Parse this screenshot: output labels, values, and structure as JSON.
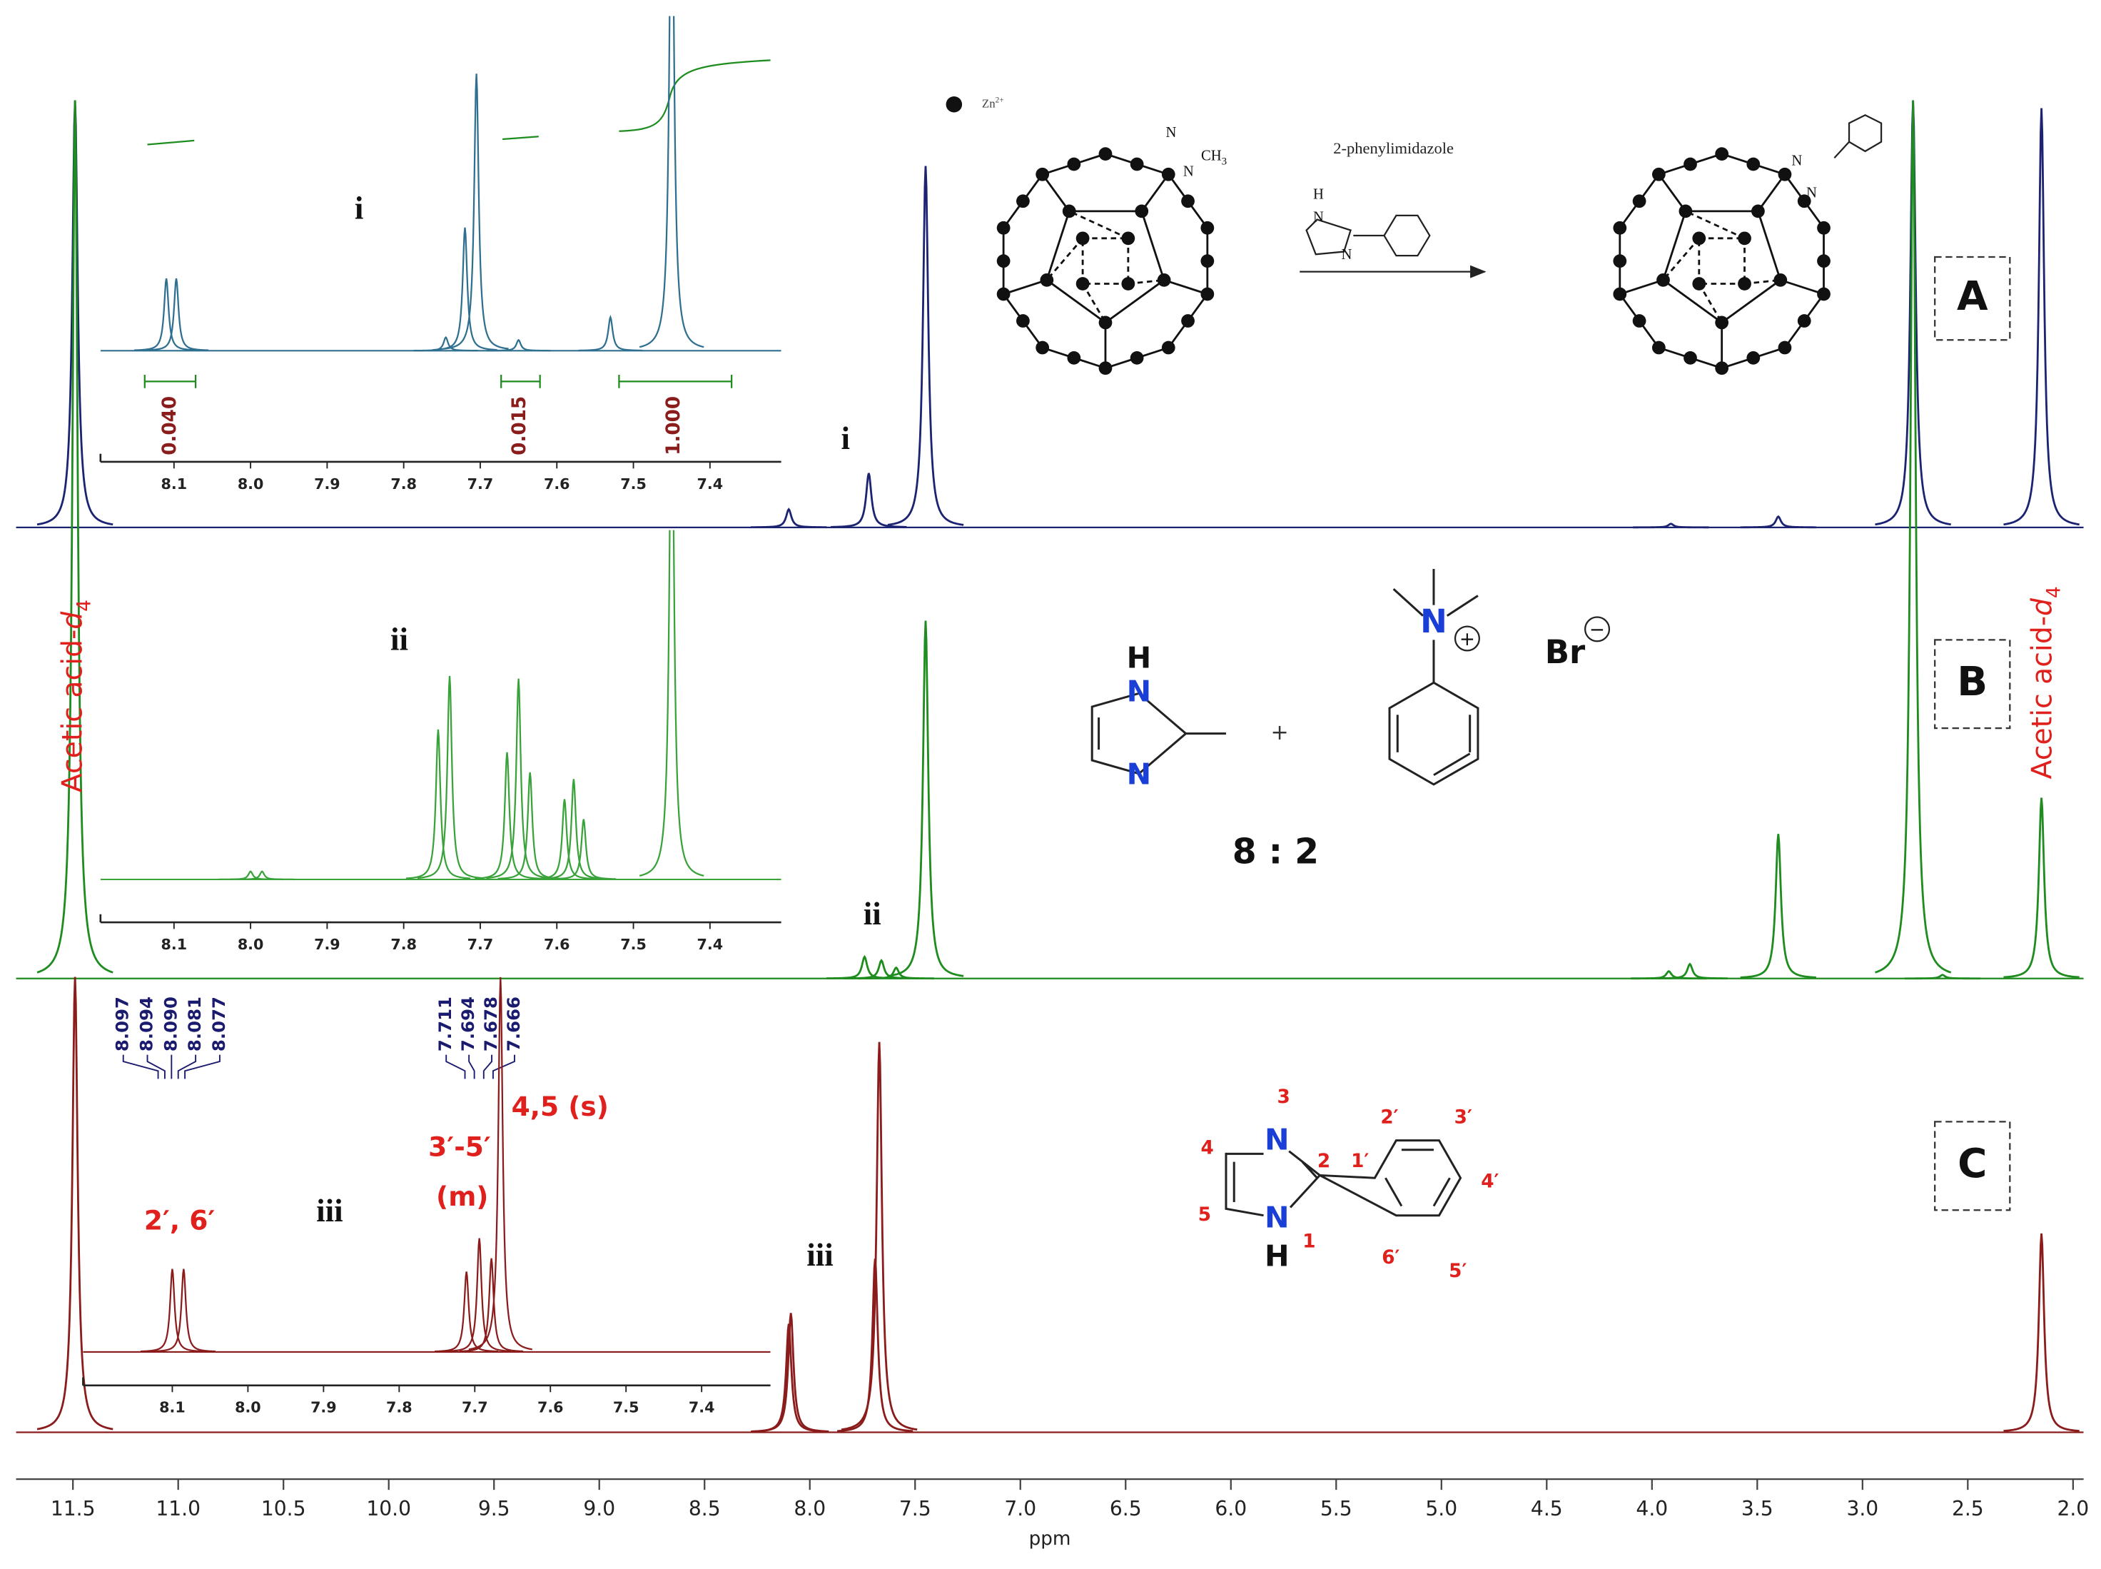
{
  "chart_data": [
    {
      "type": "line",
      "x_label": "ppm",
      "xlim": [
        11.77,
        1.95
      ],
      "xticks": [
        11.5,
        {
          "value": 11,
          "label": "11.0"
        },
        10.5,
        {
          "value": 10,
          "label": "10.0"
        },
        9.5,
        {
          "value": 9,
          "label": "9.0"
        },
        8.5,
        {
          "value": 8,
          "label": "8.0"
        },
        7.5,
        {
          "value": 7,
          "label": "7.0"
        },
        6.5,
        {
          "value": 6,
          "label": "6.0"
        },
        5.5,
        {
          "value": 5,
          "label": "5.0"
        },
        4.5,
        {
          "value": 4,
          "label": "4.0"
        },
        3.5,
        {
          "value": 3,
          "label": "3.0"
        },
        2.5,
        {
          "value": 2,
          "label": "2.0"
        }
      ],
      "series": [
        {
          "name": "A",
          "color": "#1c2472",
          "x": [
            11.49,
            8.1,
            7.72,
            7.45,
            3.91,
            3.4,
            2.76,
            2.15
          ],
          "values": [
            118,
            5,
            15,
            100,
            1,
            3,
            118,
            116
          ]
        },
        {
          "name": "B",
          "color": "#1e8c1e",
          "x": [
            11.49,
            7.74,
            7.66,
            7.59,
            7.45,
            3.92,
            3.82,
            3.4,
            2.76,
            2.62,
            2.15
          ],
          "values": [
            243,
            6,
            5,
            3,
            99,
            2,
            4,
            40,
            243,
            1,
            50
          ]
        },
        {
          "name": "C",
          "color": "#8b1c1c",
          "x": [
            11.49,
            8.1,
            8.09,
            7.69,
            7.67,
            2.15
          ],
          "values": [
            126,
            30,
            33,
            48,
            108,
            55
          ]
        }
      ],
      "annotations": {
        "solvent": [
          "Acetic acid-",
          "d",
          "4"
        ],
        "inset_labels": [
          "i",
          "ii",
          "iii"
        ],
        "peak_labels": [
          "i",
          "ii",
          "iii"
        ],
        "assignments": [
          "2′, 6′",
          "3′-5′",
          "(m)",
          "4,5 (s)"
        ],
        "shifts": [
          "8.097",
          "8.094",
          "8.090",
          "8.081",
          "8.077",
          "7.711",
          "7.694",
          "7.678",
          "7.666"
        ],
        "integrals": [
          "0.040",
          "0.015",
          "1.000"
        ]
      },
      "scheme_A": {
        "legend": [
          "Zn",
          "2+"
        ],
        "reagent": "2-phenylimidazole",
        "reagent_atoms": [
          "H",
          "N",
          "N"
        ],
        "start_atoms": [
          "N",
          "N",
          "CH",
          "3"
        ],
        "product_atoms": [
          "N",
          "N"
        ]
      },
      "scheme_B": {
        "imidazole_atoms": [
          "H",
          "N",
          "N"
        ],
        "plus": "+",
        "cation_atom": "N",
        "cation_charge": "+",
        "anion": "Br",
        "anion_charge": "−",
        "ratio": "8 : 2"
      },
      "scheme_C": {
        "atoms": [
          "N",
          "N",
          "H"
        ],
        "numbers": [
          "3",
          "4",
          "5",
          "2",
          "1",
          "1′",
          "2′",
          "3′",
          "4′",
          "5′",
          "6′"
        ]
      }
    },
    {
      "type": "line",
      "color": "#2f6f8f",
      "xlim": [
        8.196,
        7.307
      ],
      "xticks": [
        8.1,
        {
          "value": 8,
          "label": "8.0"
        },
        7.9,
        7.8,
        7.7,
        7.6,
        7.5,
        7.4
      ],
      "x": [
        8.11,
        8.097,
        7.745,
        7.72,
        7.705,
        7.65,
        7.53,
        7.45
      ],
      "values": [
        54,
        54,
        10,
        92,
        207,
        8,
        25,
        400
      ]
    },
    {
      "type": "line",
      "color": "#3aa23a",
      "xlim": [
        8.196,
        7.307
      ],
      "xticks": [
        8.1,
        {
          "value": 8,
          "label": "8.0"
        },
        7.9,
        7.8,
        7.7,
        7.6,
        7.5,
        7.4
      ],
      "x": [
        8.0,
        7.985,
        7.755,
        7.74,
        7.665,
        7.65,
        7.635,
        7.59,
        7.578,
        7.565,
        7.45
      ],
      "values": [
        6,
        6,
        112,
        152,
        95,
        150,
        80,
        60,
        75,
        45,
        400
      ]
    },
    {
      "type": "line",
      "color": "#8b1c1c",
      "xlim": [
        8.218,
        7.309
      ],
      "xticks": [
        8.1,
        {
          "value": 8,
          "label": "8.0"
        },
        7.9,
        7.8,
        7.7,
        7.6,
        7.5,
        7.4
      ],
      "x": [
        8.1,
        8.085,
        7.711,
        7.694,
        7.678,
        7.666
      ],
      "values": [
        62,
        62,
        60,
        85,
        70,
        280
      ]
    }
  ]
}
